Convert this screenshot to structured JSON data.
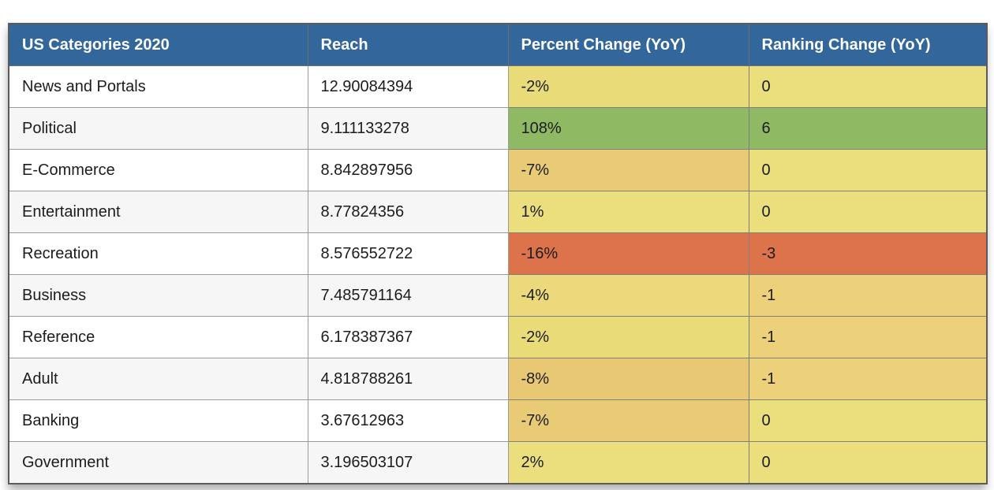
{
  "chart_data": {
    "type": "table",
    "title": "US Categories 2020",
    "columns": [
      "US Categories 2020",
      "Reach",
      "Percent Change (YoY)",
      "Ranking Change (YoY)"
    ],
    "rows": [
      {
        "category": "News and Portals",
        "reach": "12.90084394",
        "percent_change_yoy": "-2%",
        "percent_color": "#e9dc78",
        "ranking_change_yoy": "0",
        "ranking_color": "#eade7d"
      },
      {
        "category": "Political",
        "reach": "9.111133278",
        "percent_change_yoy": "108%",
        "percent_color": "#8fb963",
        "ranking_change_yoy": "6",
        "ranking_color": "#8fb963"
      },
      {
        "category": "E-Commerce",
        "reach": "8.842897956",
        "percent_change_yoy": "-7%",
        "percent_color": "#e9cb75",
        "ranking_change_yoy": "0",
        "ranking_color": "#eade7d"
      },
      {
        "category": "Entertainment",
        "reach": "8.77824356",
        "percent_change_yoy": "1%",
        "percent_color": "#eade7d",
        "ranking_change_yoy": "0",
        "ranking_color": "#eade7d"
      },
      {
        "category": "Recreation",
        "reach": "8.576552722",
        "percent_change_yoy": "-16%",
        "percent_color": "#dc734a",
        "ranking_change_yoy": "-3",
        "ranking_color": "#dc734a"
      },
      {
        "category": "Business",
        "reach": "7.485791164",
        "percent_change_yoy": "-4%",
        "percent_color": "#ebd97b",
        "ranking_change_yoy": "-1",
        "ranking_color": "#ecd17a"
      },
      {
        "category": "Reference",
        "reach": "6.178387367",
        "percent_change_yoy": "-2%",
        "percent_color": "#e9dc78",
        "ranking_change_yoy": "-1",
        "ranking_color": "#ecd17a"
      },
      {
        "category": "Adult",
        "reach": "4.818788261",
        "percent_change_yoy": "-8%",
        "percent_color": "#e9c873",
        "ranking_change_yoy": "-1",
        "ranking_color": "#ecd17a"
      },
      {
        "category": "Banking",
        "reach": "3.67612963",
        "percent_change_yoy": "-7%",
        "percent_color": "#e9cb75",
        "ranking_change_yoy": "0",
        "ranking_color": "#eade7d"
      },
      {
        "category": "Government",
        "reach": "3.196503107",
        "percent_change_yoy": "2%",
        "percent_color": "#eade7d",
        "ranking_change_yoy": "0",
        "ranking_color": "#eade7d"
      }
    ],
    "layout": {
      "legend": "none",
      "grid": "cell-borders",
      "color_scale": "red-yellow-green conditional formatting on Percent Change and Ranking Change columns"
    }
  },
  "styles": {
    "header_bg": "#33669a",
    "header_text": "#ffffff",
    "row_bg": "#ffffff",
    "row_alt_bg": "#f6f6f6",
    "cell_text": "#1c1c1c",
    "positive_green": "#8fb963",
    "neutral_yellow": "#eade7d",
    "negative_orange": "#dc734a",
    "outer_border": "#5b5b5b"
  }
}
